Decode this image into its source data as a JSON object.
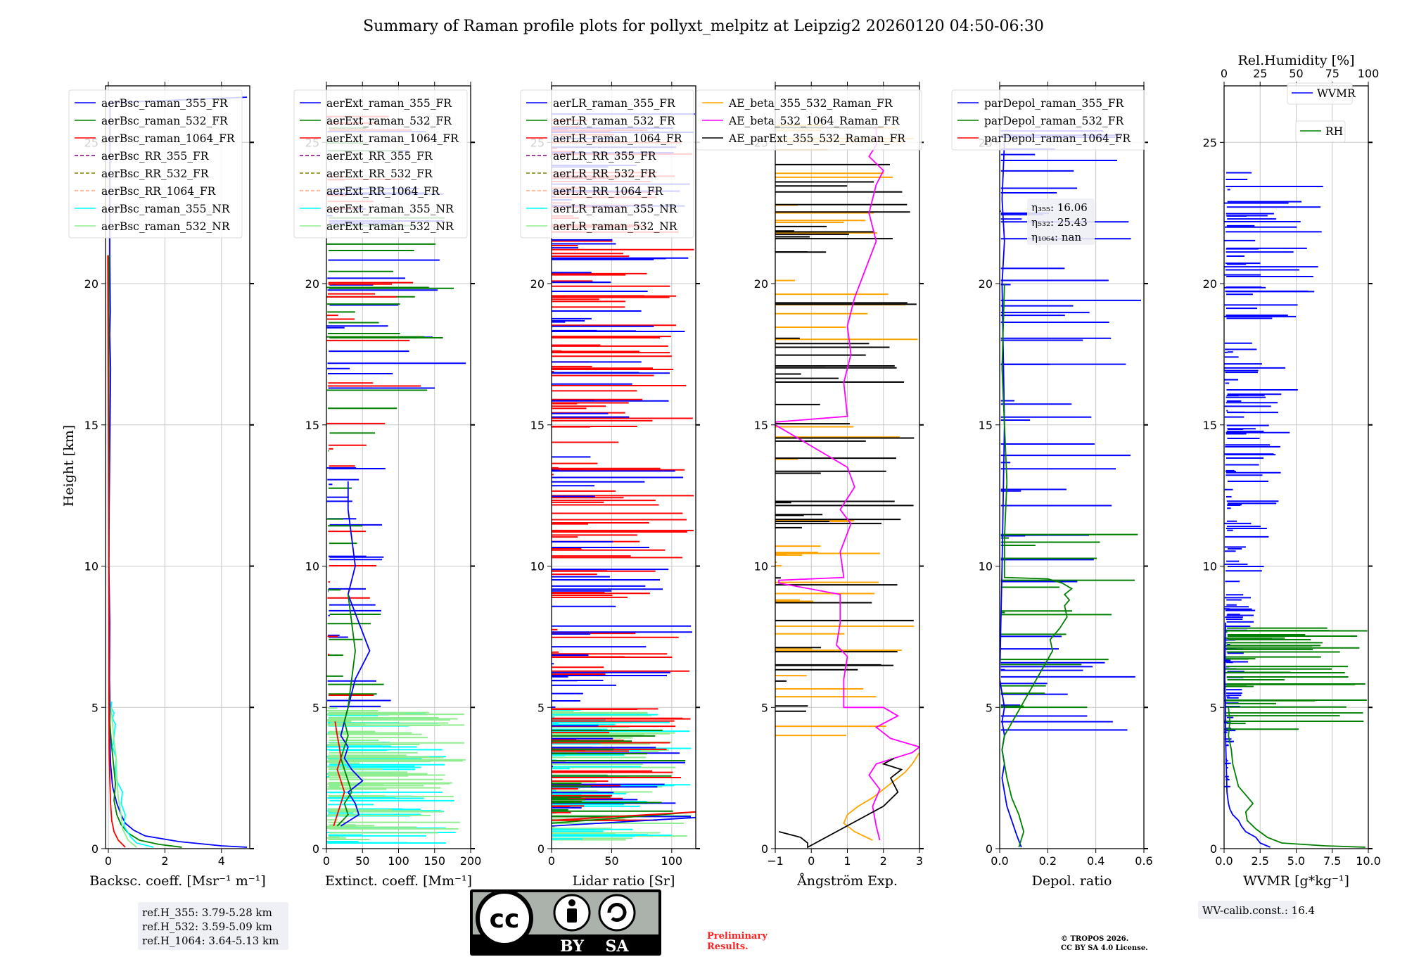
{
  "title": "Summary of Raman profile plots for pollyxt_melpitz at Leipzig2 20260120 04:50-06:30",
  "ylabel": "Height [km]",
  "chart_data": [
    {
      "type": "line",
      "id": "backscatter",
      "xlabel": "Backsc. coeff. [Msr⁻¹ m⁻¹]",
      "xlim": [
        -0.1,
        5.0
      ],
      "xticks": [
        0,
        2,
        4
      ],
      "xticklabels": [
        "0",
        "2",
        "4"
      ],
      "ylim": [
        0,
        27
      ],
      "yticks": [
        0,
        5,
        10,
        15,
        20,
        25
      ],
      "yticklabels": [
        "0",
        "5",
        "10",
        "15",
        "20",
        "25"
      ],
      "legend": [
        "aerBsc_raman_355_FR",
        "aerBsc_raman_532_FR",
        "aerBsc_raman_1064_FR",
        "aerBsc_RR_355_FR",
        "aerBsc_RR_532_FR",
        "aerBsc_RR_1064_FR",
        "aerBsc_raman_355_NR",
        "aerBsc_raman_532_NR"
      ],
      "series": [
        {
          "name": "aerBsc_raman_355_FR",
          "color": "#0000ff",
          "x": [
            4.9,
            4.0,
            2.5,
            1.3,
            0.9,
            0.6,
            0.45,
            0.3,
            0.15,
            0.08,
            0.05,
            0.06,
            0.04,
            0.05,
            0.02,
            0.03,
            0.06,
            0.08,
            0.05,
            0.07,
            0.05,
            0.05,
            0.06,
            4.9
          ],
          "y": [
            0.05,
            0.1,
            0.25,
            0.45,
            0.65,
            0.9,
            1.2,
            1.6,
            2.2,
            3.0,
            4.0,
            5.0,
            6.0,
            8.0,
            10.0,
            12.0,
            15.0,
            17.0,
            18.2,
            19.0,
            21.0,
            22.5,
            26.4,
            26.6
          ]
        },
        {
          "name": "aerBsc_raman_532_FR",
          "color": "#008000",
          "x": [
            2.6,
            1.8,
            1.1,
            0.7,
            0.45,
            0.3,
            0.2,
            0.25,
            0.18,
            0.12,
            0.05,
            0.02,
            0.02,
            0.02,
            0.02
          ],
          "y": [
            0.05,
            0.15,
            0.3,
            0.55,
            0.85,
            1.2,
            1.7,
            2.3,
            3.0,
            3.6,
            4.5,
            6.0,
            10.0,
            15.0,
            21.0
          ]
        },
        {
          "name": "aerBsc_raman_1064_FR",
          "color": "#ff0000",
          "x": [
            0.6,
            0.35,
            0.2,
            0.12,
            0.08,
            0.05,
            0.03,
            0.02,
            0.02,
            0.0,
            -0.02
          ],
          "y": [
            0.05,
            0.3,
            0.6,
            1.0,
            1.6,
            2.5,
            3.5,
            5.0,
            8.0,
            15.0,
            21.0
          ]
        },
        {
          "name": "aerBsc_raman_355_NR",
          "color": "#00ffff",
          "x": [
            1.6,
            1.0,
            0.8,
            0.55,
            0.6,
            0.45,
            0.5,
            0.3,
            0.25,
            0.28,
            0.15,
            0.2,
            0.25,
            0.15,
            0.2,
            0.1,
            0.12
          ],
          "y": [
            0.05,
            0.2,
            0.4,
            0.8,
            1.2,
            1.6,
            2.0,
            2.4,
            2.8,
            3.2,
            3.6,
            4.0,
            4.4,
            4.6,
            4.8,
            5.0,
            5.2
          ]
        },
        {
          "name": "aerBsc_raman_532_NR",
          "color": "#90ee90",
          "x": [
            1.0,
            0.7,
            0.5,
            0.45,
            0.35,
            0.3,
            0.28,
            0.2,
            0.15,
            0.1
          ],
          "y": [
            0.05,
            0.3,
            0.7,
            1.2,
            1.8,
            2.5,
            3.2,
            3.8,
            4.4,
            5.0
          ]
        }
      ],
      "annotation": [
        "ref.H_355: 3.79-5.28 km",
        "ref.H_532: 3.59-5.09 km",
        "ref.H_1064: 3.64-5.13 km"
      ]
    },
    {
      "type": "line",
      "id": "extinction",
      "xlabel": "Extinct. coeff. [Mm⁻¹]",
      "xlim": [
        0,
        200
      ],
      "xticks": [
        0,
        50,
        100,
        150,
        200
      ],
      "xticklabels": [
        "0",
        "50",
        "100",
        "150",
        "200"
      ],
      "ylim": [
        0,
        27
      ],
      "yticks": [
        0,
        5,
        10,
        15,
        20,
        25
      ],
      "yticklabels": [
        "0",
        "5",
        "10",
        "15",
        "20",
        "25"
      ],
      "legend": [
        "aerExt_raman_355_FR",
        "aerExt_raman_532_FR",
        "aerExt_raman_1064_FR",
        "aerExt_RR_355_FR",
        "aerExt_RR_532_FR",
        "aerExt_RR_1064_FR",
        "aerExt_raman_355_NR",
        "aerExt_raman_532_NR"
      ],
      "series": [
        {
          "name": "aerExt_raman_355_FR",
          "color": "#0000ff",
          "x": [
            20,
            45,
            40,
            30,
            50,
            35,
            25,
            30,
            20,
            25,
            30,
            40,
            60,
            45,
            30,
            40,
            35,
            30,
            30
          ],
          "y": [
            0.8,
            1.2,
            1.6,
            2.0,
            2.4,
            2.8,
            3.2,
            3.6,
            4.0,
            4.5,
            5.0,
            6.0,
            7.0,
            8.0,
            9.0,
            10.0,
            11.0,
            12.0,
            13.0
          ]
        },
        {
          "name": "aerExt_raman_532_FR",
          "color": "#008000",
          "x": [
            15,
            30,
            25,
            35,
            30,
            25,
            20,
            25,
            30,
            25,
            30,
            35,
            40,
            35,
            30
          ],
          "y": [
            0.8,
            1.2,
            1.6,
            2.0,
            2.4,
            2.8,
            3.2,
            3.6,
            4.0,
            4.5,
            5.0,
            6.0,
            7.0,
            8.0,
            9.0
          ]
        },
        {
          "name": "aerExt_raman_1064_FR",
          "color": "#ff0000",
          "x": [
            10,
            15,
            20,
            25,
            20,
            15,
            20,
            18,
            15,
            12
          ],
          "y": [
            0.8,
            1.2,
            1.6,
            2.0,
            2.4,
            2.8,
            3.2,
            3.6,
            4.0,
            4.5
          ]
        }
      ]
    },
    {
      "type": "line",
      "id": "lidar_ratio",
      "xlabel": "Lidar ratio [Sr]",
      "xlim": [
        0,
        120
      ],
      "xticks": [
        0,
        50,
        100
      ],
      "xticklabels": [
        "0",
        "50",
        "100"
      ],
      "ylim": [
        0,
        27
      ],
      "yticks": [
        0,
        5,
        10,
        15,
        20,
        25
      ],
      "yticklabels": [
        "0",
        "5",
        "10",
        "15",
        "20",
        "25"
      ],
      "legend": [
        "aerLR_raman_355_FR",
        "aerLR_raman_532_FR",
        "aerLR_raman_1064_FR",
        "aerLR_RR_355_FR",
        "aerLR_RR_532_FR",
        "aerLR_RR_1064_FR",
        "aerLR_raman_355_NR",
        "aerLR_raman_532_NR"
      ],
      "series": [
        {
          "name": "aerLR_raman_355_FR",
          "color": "#0000ff",
          "x": [
            0,
            40,
            80,
            100,
            120
          ],
          "y": [
            0.8,
            0.9,
            1.0,
            1.05,
            1.1
          ]
        },
        {
          "name": "aerLR_raman_532_FR",
          "color": "#008000",
          "x": [
            0,
            30,
            60,
            90,
            120
          ],
          "y": [
            0.9,
            1.0,
            1.1,
            1.2,
            1.3
          ]
        },
        {
          "name": "aerLR_raman_1064_FR",
          "color": "#ff0000",
          "x": [
            0,
            40,
            80,
            120
          ],
          "y": [
            1.0,
            1.1,
            1.2,
            1.3
          ]
        }
      ]
    },
    {
      "type": "line",
      "id": "angstrom",
      "xlabel": "Ångström Exp.",
      "xlim": [
        -1,
        3
      ],
      "xticks": [
        -1,
        0,
        1,
        2,
        3
      ],
      "xticklabels": [
        "−1",
        "0",
        "1",
        "2",
        "3"
      ],
      "ylim": [
        0,
        27
      ],
      "yticks": [
        0,
        5,
        10,
        15,
        20,
        25
      ],
      "yticklabels": [
        "0",
        "5",
        "10",
        "15",
        "20",
        "25"
      ],
      "legend": [
        "AE_beta_355_532_Raman_FR",
        "AE_beta_532_1064_Raman_FR",
        "AE_parExt_355_532_Raman_FR"
      ],
      "series": [
        {
          "name": "AE_beta_355_532_Raman_FR",
          "color": "#ffa500",
          "x": [
            1.7,
            1.2,
            0.9,
            1.0,
            1.3,
            1.7,
            2.0,
            2.3,
            2.6,
            2.8,
            3.0
          ],
          "y": [
            0.3,
            0.6,
            0.9,
            1.2,
            1.5,
            1.8,
            2.1,
            2.4,
            2.7,
            3.0,
            3.4
          ]
        },
        {
          "name": "AE_beta_532_1064_Raman_FR",
          "color": "#ff00ff",
          "x": [
            1.9,
            1.8,
            1.7,
            1.9,
            1.6,
            1.8,
            2.3,
            2.8,
            3.0,
            2.2,
            1.8,
            2.4,
            2.0,
            0.9,
            0.9,
            1.0,
            0.7,
            0.8,
            0.8,
            -0.9,
            -0.9,
            0.9,
            0.8,
            1.1,
            0.8,
            1.2,
            1.0,
            -1.0,
            -1.0,
            1.0,
            0.9,
            1.1,
            1.0,
            1.2,
            1.5,
            1.8,
            1.6,
            1.7,
            1.8,
            2.0,
            1.6,
            1.8,
            1.8
          ],
          "y": [
            0.3,
            0.8,
            1.5,
            2.1,
            2.6,
            3.0,
            3.2,
            3.4,
            3.6,
            3.9,
            4.3,
            4.7,
            5.0,
            5.0,
            6.0,
            6.8,
            7.2,
            8.0,
            9.0,
            9.4,
            9.5,
            9.6,
            10.5,
            11.5,
            12.0,
            12.8,
            13.5,
            15.0,
            15.1,
            15.3,
            16.5,
            17.5,
            18.5,
            19.5,
            20.5,
            21.5,
            22.5,
            23.0,
            23.5,
            24.0,
            24.5,
            24.9,
            25.5
          ]
        },
        {
          "name": "AE_parExt_355_532_Raman_FR",
          "color": "#000000",
          "x": [
            -0.9,
            -0.3,
            -0.1,
            -0.1,
            2.0,
            2.4,
            2.2,
            2.5,
            2.0,
            2.3
          ],
          "y": [
            0.6,
            0.4,
            0.2,
            0.05,
            1.5,
            2.0,
            2.5,
            2.8,
            3.0,
            3.2
          ]
        }
      ]
    },
    {
      "type": "line",
      "id": "depolarization",
      "xlabel": "Depol. ratio",
      "xlim": [
        0.0,
        0.6
      ],
      "xticks": [
        0.0,
        0.2,
        0.4,
        0.6
      ],
      "xticklabels": [
        "0.0",
        "0.2",
        "0.4",
        "0.6"
      ],
      "ylim": [
        0,
        27
      ],
      "yticks": [
        0,
        5,
        10,
        15,
        20,
        25
      ],
      "yticklabels": [
        "0",
        "5",
        "10",
        "15",
        "20",
        "25"
      ],
      "legend": [
        "parDepol_raman_355_FR",
        "parDepol_raman_532_FR",
        "parDepol_raman_1064_FR"
      ],
      "series": [
        {
          "name": "parDepol_raman_355_FR",
          "color": "#0000ff",
          "x": [
            0.09,
            0.07,
            0.05,
            0.03,
            0.02,
            0.01,
            0.02,
            0.01,
            0.02,
            0.01,
            0.02,
            0.0,
            0.01,
            0.02,
            0.01,
            0.02,
            0.01,
            0.02
          ],
          "y": [
            0.05,
            0.5,
            1.0,
            1.5,
            2.0,
            2.5,
            3.0,
            3.5,
            4.0,
            4.5,
            5.0,
            6.0,
            10.0,
            15.0,
            20.0,
            21.5,
            23.0,
            25.0
          ]
        },
        {
          "name": "parDepol_raman_532_FR",
          "color": "#008000",
          "x": [
            0.08,
            0.1,
            0.08,
            0.05,
            0.03,
            0.02,
            0.01,
            0.02,
            0.22,
            0.21,
            0.25,
            0.28,
            0.27,
            0.29,
            0.27,
            0.3,
            0.26,
            0.22,
            0.2,
            0.02,
            0.02,
            0.03,
            0.02,
            0.01,
            0.02
          ],
          "y": [
            0.05,
            0.6,
            1.2,
            1.8,
            2.5,
            3.0,
            3.5,
            4.0,
            7.0,
            7.4,
            7.8,
            8.2,
            8.6,
            8.8,
            9.0,
            9.2,
            9.4,
            9.5,
            9.55,
            9.6,
            11.0,
            13.0,
            15.0,
            17.0,
            20.0
          ]
        }
      ],
      "annotation": [
        "η₃₅₅: 16.06",
        "η₅₃₂: 25.43",
        "η₁₀₆₄: nan"
      ]
    },
    {
      "type": "line",
      "id": "water_vapor",
      "xlabel": "WVMR [g*kg⁻¹]",
      "xlim": [
        0.0,
        10.0
      ],
      "xticks": [
        0.0,
        2.5,
        5.0,
        7.5,
        10.0
      ],
      "xticklabels": [
        "0.0",
        "2.5",
        "5.0",
        "7.5",
        "10.0"
      ],
      "top_label": "Rel.Humidity [%]",
      "top_xlim": [
        0,
        100
      ],
      "top_xticks": [
        0,
        25,
        50,
        75,
        100
      ],
      "top_xticklabels": [
        "0",
        "25",
        "50",
        "75",
        "100"
      ],
      "ylim": [
        0,
        27
      ],
      "yticks": [
        0,
        5,
        10,
        15,
        20,
        25
      ],
      "yticklabels": [
        "0",
        "5",
        "10",
        "15",
        "20",
        "25"
      ],
      "legend": [
        "WVMR",
        "RH"
      ],
      "series": [
        {
          "name": "WVMR",
          "color": "#0000ff",
          "x": [
            3.2,
            2.5,
            2.2,
            1.5,
            1.2,
            1.0,
            0.6,
            0.4,
            0.3,
            0.2,
            0.15,
            0.1,
            0.1,
            0.05,
            0.1
          ],
          "y": [
            0.05,
            0.2,
            0.4,
            0.6,
            0.8,
            1.0,
            1.2,
            1.4,
            1.6,
            2.0,
            3.0,
            4.0,
            5.0,
            6.0,
            8.0
          ]
        },
        {
          "name": "RH",
          "color": "#008000",
          "x": [
            9.8,
            7.0,
            4.0,
            3.0,
            2.2,
            1.6,
            1.5,
            2.0,
            1.5,
            1.0,
            0.8,
            0.6,
            0.5,
            0.3,
            0.4,
            0.3
          ],
          "y": [
            0.05,
            0.1,
            0.2,
            0.4,
            0.7,
            1.0,
            1.3,
            1.6,
            1.9,
            2.2,
            2.6,
            3.0,
            3.5,
            4.0,
            4.5,
            5.0
          ]
        }
      ],
      "annotation": [
        "WV-calib.const.: 16.4"
      ]
    }
  ],
  "license_badge": {
    "cc": "cc",
    "by": "BY",
    "sa": "SA"
  },
  "preliminary": [
    "Preliminary",
    "Results."
  ],
  "copyright": [
    "© TROPOS 2026.",
    "CC BY SA 4.0 License."
  ],
  "colors": {
    "blue": "#0000ff",
    "green": "#008000",
    "red": "#ff0000",
    "cyan": "#00ffff",
    "lightgreen": "#90ee90",
    "orange": "#ffa500",
    "magenta": "#ff00ff",
    "purple": "#800080",
    "olive": "#808000",
    "salmon": "#ffa07a"
  }
}
